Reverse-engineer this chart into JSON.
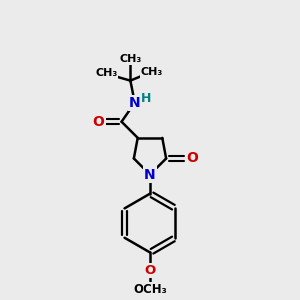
{
  "bg_color": "#ebebeb",
  "bond_color": "#000000",
  "bond_width": 1.8,
  "N_color": "#0000cc",
  "O_color": "#cc0000",
  "H_color": "#008080",
  "figsize": [
    3.0,
    3.0
  ],
  "dpi": 100,
  "xlim": [
    0,
    10
  ],
  "ylim": [
    0,
    10
  ]
}
